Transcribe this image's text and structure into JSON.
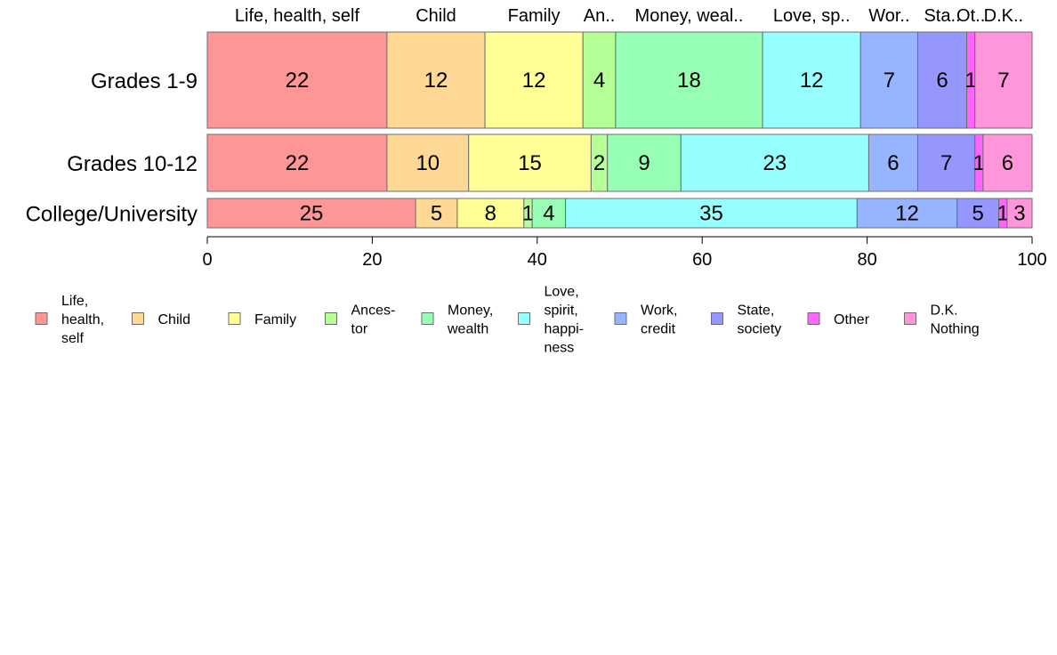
{
  "chart_data": {
    "type": "bar",
    "orientation": "horizontal",
    "stacked": true,
    "normalized": true,
    "categories": [
      "Grades 1-9",
      "Grades 10-12",
      "College/University"
    ],
    "series": [
      {
        "name": "Life, health, self",
        "legend_lines": [
          "Life,",
          "health,",
          "self"
        ],
        "top_label": "Life, health, self",
        "color": "#ff9696",
        "values": [
          22,
          22,
          25
        ]
      },
      {
        "name": "Child",
        "legend_lines": [
          "Child"
        ],
        "top_label": "Child",
        "color": "#ffd896",
        "values": [
          12,
          10,
          5
        ]
      },
      {
        "name": "Family",
        "legend_lines": [
          "Family"
        ],
        "top_label": "Family",
        "color": "#ffff96",
        "values": [
          12,
          15,
          8
        ]
      },
      {
        "name": "Ancestor",
        "legend_lines": [
          "Ances-",
          "tor"
        ],
        "top_label": "An..",
        "color": "#b4ff96",
        "values": [
          4,
          2,
          1
        ]
      },
      {
        "name": "Money, wealth",
        "legend_lines": [
          "Money,",
          "wealth"
        ],
        "top_label": "Money, weal..",
        "color": "#96ffb4",
        "values": [
          18,
          9,
          4
        ]
      },
      {
        "name": "Love, spirit, happiness",
        "legend_lines": [
          "Love,",
          "spirit,",
          "happi-",
          "ness"
        ],
        "top_label": "Love, sp..",
        "color": "#96ffff",
        "values": [
          12,
          23,
          35
        ]
      },
      {
        "name": "Work, credit",
        "legend_lines": [
          "Work,",
          "credit"
        ],
        "top_label": "Wor..",
        "color": "#96b4ff",
        "values": [
          7,
          6,
          12
        ]
      },
      {
        "name": "State, society",
        "legend_lines": [
          "State,",
          "society"
        ],
        "top_label": "Sta..",
        "color": "#9696ff",
        "values": [
          6,
          7,
          5
        ]
      },
      {
        "name": "Other",
        "legend_lines": [
          "Other"
        ],
        "top_label": "Ot..",
        "color": "#ff64ff",
        "values": [
          1,
          1,
          1
        ]
      },
      {
        "name": "D.K. Nothing",
        "legend_lines": [
          "D.K.",
          "Nothing"
        ],
        "top_label": "D.K..",
        "color": "#ff96dc",
        "values": [
          7,
          6,
          3
        ]
      }
    ],
    "xlim": [
      0,
      100
    ],
    "xticks": [
      "0",
      "20",
      "40",
      "60",
      "80",
      "100"
    ],
    "title": "",
    "xlabel": "",
    "ylabel": "",
    "grid": false,
    "legend": "bottom"
  }
}
